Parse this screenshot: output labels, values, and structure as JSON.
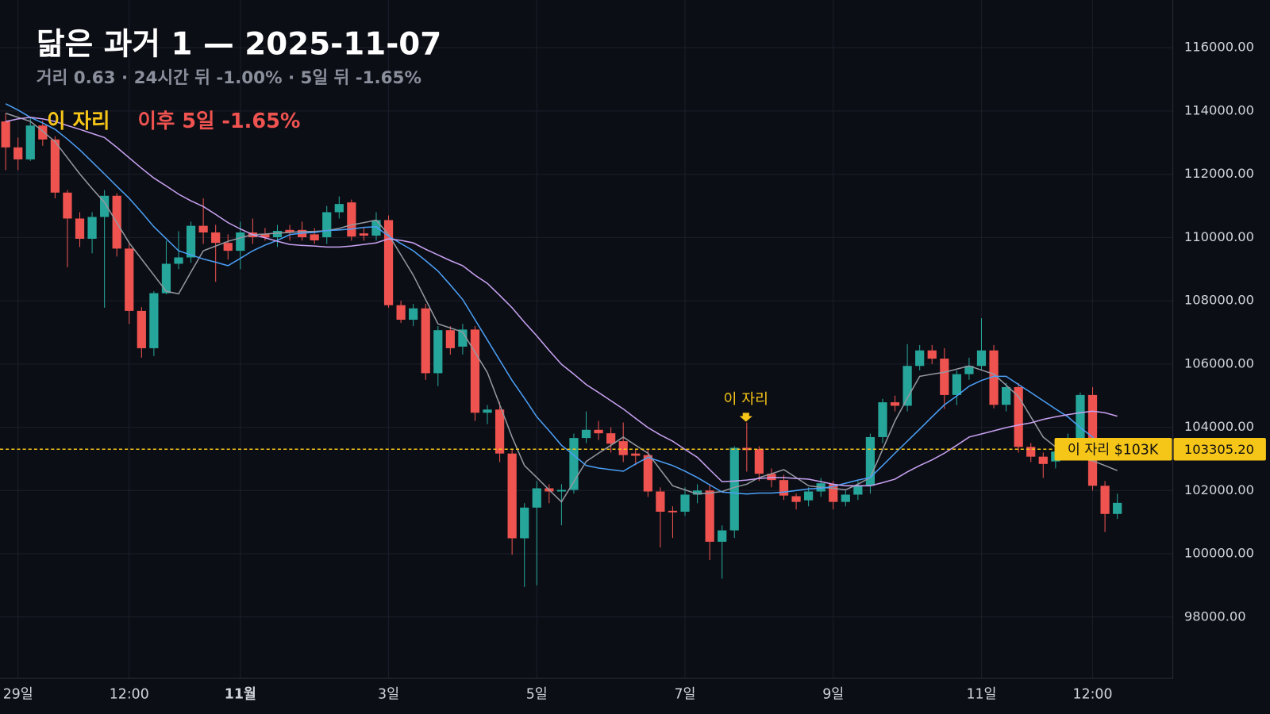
{
  "chart_data": {
    "type": "candlestick",
    "title": "닮은 과거 1 — 2025-11-07",
    "subtitle": "거리 0.63 · 24시간 뒤 -1.00% · 5일 뒤 -1.65%",
    "marker_label": "이 자리",
    "outcome_label": "이후 5일 -1.65%",
    "annotation": "이 자리",
    "categories": [
      null,
      "29일",
      null,
      null,
      null,
      null,
      null,
      null,
      null,
      null,
      "12:00",
      null,
      null,
      null,
      null,
      null,
      null,
      null,
      null,
      "11월",
      null,
      null,
      null,
      null,
      null,
      null,
      null,
      null,
      null,
      null,
      null,
      "3일",
      null,
      null,
      null,
      null,
      null,
      null,
      null,
      null,
      null,
      null,
      null,
      "5일",
      null,
      null,
      null,
      null,
      null,
      null,
      null,
      null,
      null,
      null,
      null,
      "7일",
      null,
      null,
      null,
      null,
      null,
      null,
      null,
      null,
      null,
      null,
      null,
      "9일",
      null,
      null,
      null,
      null,
      null,
      null,
      null,
      null,
      null,
      null,
      null,
      "11일",
      null,
      null,
      null,
      null,
      null,
      null,
      null,
      null,
      "12:00",
      null,
      null
    ],
    "open": [
      113670,
      112850,
      112470,
      113540,
      113100,
      111420,
      110600,
      109960,
      110650,
      111320,
      109650,
      107680,
      106500,
      108240,
      109170,
      109370,
      110370,
      110160,
      109830,
      109580,
      110160,
      110100,
      110010,
      110240,
      110240,
      110100,
      110010,
      110800,
      111110,
      110130,
      110060,
      110550,
      107860,
      107400,
      107760,
      105710,
      107070,
      106550,
      107090,
      104460,
      104560,
      103170,
      100490,
      101460,
      102070,
      101970,
      102020,
      103660,
      103920,
      103810,
      103560,
      103170,
      103120,
      101970,
      101360,
      101330,
      101870,
      102000,
      100380,
      100740,
      103350,
      103310,
      102530,
      102330,
      101820,
      101690,
      101970,
      102200,
      101640,
      101870,
      102150,
      103690,
      104790,
      104680,
      105940,
      106430,
      106170,
      105020,
      105680,
      105940,
      106430,
      104710,
      105270,
      103380,
      103070,
      102920,
      103230,
      103560,
      105020,
      102150,
      101260
    ],
    "high": [
      113930,
      113160,
      113800,
      113700,
      113200,
      111500,
      110800,
      110800,
      111500,
      111400,
      109800,
      107800,
      108300,
      109900,
      110200,
      110500,
      111240,
      110400,
      110100,
      110500,
      110600,
      110300,
      110400,
      110400,
      110500,
      110300,
      111000,
      111300,
      111200,
      110300,
      110800,
      110700,
      108000,
      107900,
      107900,
      107200,
      107200,
      107270,
      107200,
      104700,
      104800,
      103300,
      101600,
      102300,
      102200,
      102200,
      103800,
      104500,
      104200,
      104000,
      104150,
      103300,
      103300,
      102100,
      101500,
      102100,
      102200,
      102200,
      100900,
      103400,
      104150,
      103400,
      102700,
      102500,
      101900,
      102100,
      102400,
      102300,
      102000,
      102300,
      103800,
      104900,
      105000,
      106630,
      106600,
      106600,
      106500,
      105800,
      106200,
      107450,
      106600,
      105400,
      105400,
      103500,
      103200,
      103400,
      103800,
      105100,
      105270,
      102300,
      101900
    ],
    "low": [
      112130,
      112130,
      112420,
      112900,
      111240,
      109060,
      109700,
      109500,
      107780,
      109400,
      107270,
      106200,
      106250,
      108200,
      109000,
      109200,
      109800,
      108600,
      109300,
      109000,
      109800,
      109900,
      109700,
      109900,
      109900,
      109800,
      109800,
      110600,
      109900,
      109900,
      109900,
      107780,
      107300,
      107200,
      105500,
      105300,
      106300,
      106300,
      104200,
      104100,
      102900,
      99970,
      98950,
      99000,
      101600,
      100900,
      101900,
      103500,
      103600,
      103200,
      102900,
      102800,
      101800,
      100200,
      100500,
      101200,
      101600,
      99800,
      99210,
      100500,
      102600,
      102300,
      102100,
      101700,
      101400,
      101500,
      101800,
      101400,
      101500,
      101700,
      101900,
      103500,
      104500,
      104500,
      105800,
      106000,
      104580,
      104700,
      105500,
      105800,
      104600,
      104500,
      103200,
      102900,
      102400,
      102700,
      103100,
      103400,
      102000,
      100690,
      101100
    ],
    "close": [
      112850,
      112470,
      113540,
      113100,
      111420,
      110600,
      109960,
      110650,
      111320,
      109650,
      107680,
      106500,
      108240,
      109170,
      109370,
      110370,
      110160,
      109830,
      109580,
      110160,
      110010,
      110000,
      110210,
      110160,
      110010,
      109910,
      110800,
      111060,
      110030,
      110060,
      110550,
      107860,
      107400,
      107760,
      105710,
      107070,
      106500,
      107090,
      104460,
      104560,
      103170,
      100490,
      101460,
      102070,
      101970,
      102020,
      103660,
      103920,
      103810,
      103480,
      103120,
      103100,
      101970,
      101330,
      101310,
      101870,
      102000,
      100380,
      100740,
      103350,
      103280,
      102530,
      102330,
      101840,
      101640,
      101970,
      102230,
      101640,
      101870,
      102150,
      103690,
      104790,
      104680,
      105940,
      106430,
      106170,
      105020,
      105680,
      105940,
      106430,
      104710,
      105270,
      103380,
      103070,
      102840,
      103230,
      103560,
      105020,
      102150,
      101260,
      101610
    ],
    "up_color": "#26a69a",
    "down_color": "#ef5350",
    "series": [
      {
        "color": "#9598a1",
        "values": [
          113930,
          113800,
          113670,
          113360,
          113030,
          112520,
          112010,
          111550,
          111110,
          110470,
          109830,
          109320,
          108810,
          108300,
          108220,
          108910,
          109580,
          109730,
          109880,
          109990,
          110090,
          110110,
          110140,
          110160,
          110190,
          110190,
          110220,
          110290,
          110400,
          110470,
          110550,
          110090,
          109450,
          108810,
          108040,
          107270,
          107140,
          107010,
          106370,
          105730,
          104710,
          103690,
          102790,
          102410,
          102020,
          101640,
          102280,
          102920,
          103180,
          103430,
          103690,
          103430,
          103180,
          102660,
          102150,
          102020,
          101890,
          101920,
          101970,
          102100,
          102200,
          102410,
          102530,
          102660,
          102410,
          102150,
          102100,
          102070,
          102020,
          102200,
          102410,
          103300,
          104200,
          104920,
          105610,
          105680,
          105740,
          105840,
          105940,
          105810,
          105680,
          105330,
          104970,
          104330,
          103690,
          103380,
          103070,
          103020,
          102940,
          102790,
          102630
        ]
      },
      {
        "color": "#4a9ff5",
        "values": [
          114230,
          114030,
          113800,
          113620,
          113420,
          113110,
          112770,
          112390,
          112010,
          111620,
          111240,
          110800,
          110340,
          109960,
          109580,
          109450,
          109320,
          109220,
          109110,
          109340,
          109580,
          109760,
          109910,
          110090,
          110140,
          110160,
          110220,
          110240,
          110270,
          110320,
          110340,
          110040,
          109810,
          109580,
          109270,
          108940,
          108500,
          108040,
          107400,
          106760,
          106120,
          105480,
          104920,
          104330,
          103890,
          103430,
          103120,
          102790,
          102710,
          102660,
          102610,
          102840,
          103050,
          102920,
          102790,
          102610,
          102410,
          102180,
          101950,
          101920,
          101890,
          101920,
          101920,
          101950,
          102000,
          102050,
          102070,
          102130,
          102230,
          102330,
          102410,
          102790,
          103180,
          103560,
          103940,
          104330,
          104710,
          104990,
          105300,
          105480,
          105610,
          105610,
          105350,
          105100,
          104840,
          104580,
          104330,
          103990,
          103690,
          103180,
          null
        ]
      },
      {
        "color": "#c8a2f2",
        "values": [
          113670,
          113750,
          113800,
          113750,
          113670,
          113540,
          113420,
          113290,
          113160,
          112850,
          112520,
          112190,
          111880,
          111630,
          111370,
          111160,
          110980,
          110730,
          110470,
          110270,
          110090,
          109990,
          109880,
          109780,
          109750,
          109730,
          109700,
          109700,
          109730,
          109780,
          109830,
          109960,
          109910,
          109830,
          109630,
          109450,
          109270,
          109110,
          108810,
          108550,
          108170,
          107780,
          107320,
          106890,
          106430,
          105990,
          105680,
          105350,
          105100,
          104840,
          104580,
          104280,
          103990,
          103760,
          103560,
          103300,
          103050,
          102660,
          102280,
          102300,
          102330,
          102380,
          102410,
          102410,
          102380,
          102360,
          102280,
          102200,
          102150,
          102150,
          102150,
          102250,
          102360,
          102590,
          102790,
          102970,
          103180,
          103430,
          103690,
          103790,
          103890,
          103990,
          104070,
          104140,
          104250,
          104330,
          104400,
          104460,
          104510,
          104460,
          104350
        ]
      }
    ],
    "price_line": {
      "value": 103305.2,
      "label": "103305.20",
      "tag": "이 자리 $103K",
      "color": "#f5c518"
    },
    "ylim": [
      96060,
      117510
    ],
    "yticks": [
      {
        "value": 98000,
        "label": "98000.00"
      },
      {
        "value": 100000,
        "label": "100000.00"
      },
      {
        "value": 102000,
        "label": "102000.00"
      },
      {
        "value": 104000,
        "label": "104000.00"
      },
      {
        "value": 106000,
        "label": "106000.00"
      },
      {
        "value": 108000,
        "label": "108000.00"
      },
      {
        "value": 110000,
        "label": "110000.00"
      },
      {
        "value": 112000,
        "label": "112000.00"
      },
      {
        "value": 114000,
        "label": "114000.00"
      },
      {
        "value": 116000,
        "label": "116000.00"
      }
    ],
    "grid": true
  }
}
